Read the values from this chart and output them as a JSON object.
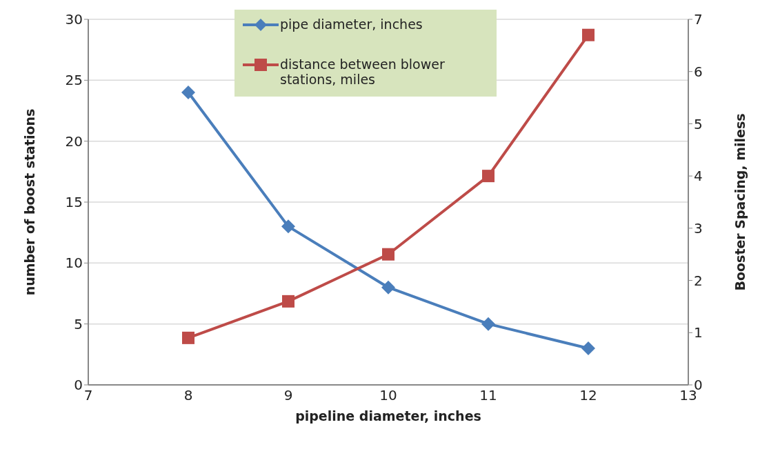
{
  "chart_data": {
    "type": "line",
    "xlabel": "pipeline diameter, inches",
    "ylabel": "number of boost stations",
    "y2label": "Booster Spacing, miless",
    "x": [
      8,
      9,
      10,
      11,
      12
    ],
    "series": [
      {
        "name": "pipe diameter, inches",
        "color": "#4a7ebb",
        "marker": "diamond",
        "values": [
          24,
          13,
          8,
          5,
          3
        ]
      },
      {
        "name": "distance between blower stations, miles",
        "color": "#be4b48",
        "marker": "square",
        "axis": "y2",
        "values": [
          0.9,
          1.6,
          2.5,
          4.0,
          6.7
        ]
      }
    ],
    "xlim": [
      7,
      13
    ],
    "xticks": [
      7,
      8,
      9,
      10,
      11,
      12,
      13
    ],
    "ylim": [
      0,
      30
    ],
    "yticks": [
      0,
      5,
      10,
      15,
      20,
      25,
      30
    ],
    "y2lim": [
      0,
      7
    ],
    "y2ticks": [
      0,
      1,
      2,
      3,
      4,
      5,
      6,
      7
    ],
    "grid": "y",
    "legend": "top",
    "line_style": "solid"
  }
}
